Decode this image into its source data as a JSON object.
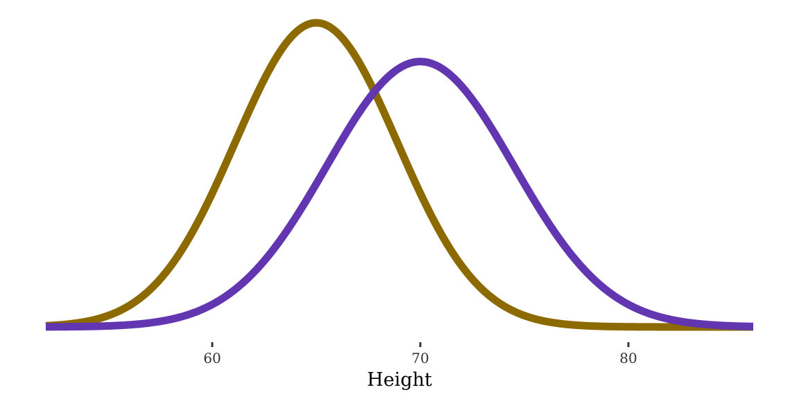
{
  "chart_data": {
    "type": "line",
    "title": "",
    "xlabel": "Height",
    "ylabel": "",
    "xlim": [
      52,
      86
    ],
    "ylim": [
      0,
      0.105
    ],
    "xticks": [
      60,
      70,
      80
    ],
    "xtick_labels": [
      "60",
      "70",
      "80"
    ],
    "grid": false,
    "legend": "none",
    "series": [
      {
        "distribution": "normal",
        "mean": 65,
        "sd": 3.9,
        "peak_density": 0.102,
        "color": "#8C6A00"
      },
      {
        "distribution": "normal",
        "mean": 70,
        "sd": 4.5,
        "peak_density": 0.089,
        "color": "#6236B0"
      }
    ]
  }
}
